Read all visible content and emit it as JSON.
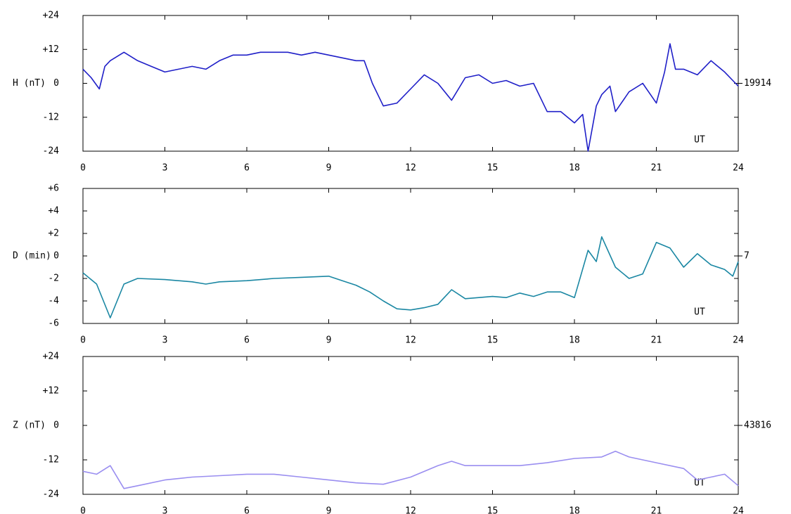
{
  "chart_data": [
    {
      "type": "line",
      "ylabel": "H (nT)",
      "right_label": "19914",
      "annotation": "UT",
      "color": "#1f1fc8",
      "xlim": [
        0,
        24
      ],
      "xticks": [
        0,
        3,
        6,
        9,
        12,
        15,
        18,
        21,
        24
      ],
      "ylim": [
        -24,
        24
      ],
      "yticks": [
        {
          "value": 24,
          "label": "+24"
        },
        {
          "value": 12,
          "label": "+12"
        },
        0,
        -12,
        -24
      ],
      "x": [
        0,
        0.3,
        0.6,
        0.8,
        1,
        1.5,
        2,
        2.5,
        3,
        3.5,
        4,
        4.5,
        5,
        5.5,
        6,
        6.5,
        7,
        7.5,
        8,
        8.5,
        9,
        9.5,
        10,
        10.3,
        10.6,
        11,
        11.5,
        12,
        12.5,
        13,
        13.5,
        14,
        14.5,
        15,
        15.5,
        16,
        16.5,
        17,
        17.5,
        18,
        18.3,
        18.5,
        18.8,
        19,
        19.3,
        19.5,
        20,
        20.5,
        21,
        21.3,
        21.5,
        21.7,
        22,
        22.5,
        23,
        23.5,
        24
      ],
      "values": [
        5,
        2,
        -2,
        6,
        8,
        11,
        8,
        6,
        4,
        5,
        6,
        5,
        8,
        10,
        10,
        11,
        11,
        11,
        10,
        11,
        10,
        9,
        8,
        8,
        0,
        -8,
        -7,
        -2,
        3,
        0,
        -6,
        2,
        3,
        0,
        1,
        -1,
        0,
        -10,
        -10,
        -14,
        -11,
        -24,
        -8,
        -4,
        -1,
        -10,
        -3,
        0,
        -7,
        4,
        14,
        5,
        5,
        3,
        8,
        4,
        -1
      ]
    },
    {
      "type": "line",
      "ylabel": "D (min)",
      "right_label": "7",
      "annotation": "UT",
      "color": "#1a87a3",
      "xlim": [
        0,
        24
      ],
      "xticks": [
        0,
        3,
        6,
        9,
        12,
        15,
        18,
        21,
        24
      ],
      "ylim": [
        -6,
        6
      ],
      "yticks": [
        {
          "value": 6,
          "label": "+6"
        },
        {
          "value": 4,
          "label": "+4"
        },
        {
          "value": 2,
          "label": "+2"
        },
        0,
        -2,
        -4,
        -6
      ],
      "x": [
        0,
        0.5,
        1,
        1.5,
        2,
        3,
        4,
        4.5,
        5,
        6,
        7,
        8,
        9,
        9.5,
        10,
        10.5,
        11,
        11.5,
        12,
        12.5,
        13,
        13.5,
        14,
        14.5,
        15,
        15.5,
        16,
        16.5,
        17,
        17.5,
        18,
        18.5,
        18.8,
        19,
        19.5,
        20,
        20.5,
        21,
        21.5,
        22,
        22.5,
        23,
        23.5,
        23.8,
        24
      ],
      "values": [
        -1.5,
        -2.5,
        -5.5,
        -2.5,
        -2,
        -2.1,
        -2.3,
        -2.5,
        -2.3,
        -2.2,
        -2,
        -1.9,
        -1.8,
        -2.2,
        -2.6,
        -3.2,
        -4,
        -4.7,
        -4.8,
        -4.6,
        -4.3,
        -3,
        -3.8,
        -3.7,
        -3.6,
        -3.7,
        -3.3,
        -3.6,
        -3.2,
        -3.2,
        -3.7,
        0.5,
        -0.5,
        1.7,
        -1,
        -2,
        -1.6,
        1.2,
        0.7,
        -1,
        0.2,
        -0.8,
        -1.2,
        -1.8,
        -0.5
      ]
    },
    {
      "type": "line",
      "ylabel": "Z (nT)",
      "right_label": "43816",
      "annotation": "UT",
      "color": "#9a8ef0",
      "xlim": [
        0,
        24
      ],
      "xticks": [
        0,
        3,
        6,
        9,
        12,
        15,
        18,
        21,
        24
      ],
      "ylim": [
        -24,
        24
      ],
      "yticks": [
        {
          "value": 24,
          "label": "+24"
        },
        {
          "value": 12,
          "label": "+12"
        },
        0,
        -12,
        -24
      ],
      "x": [
        0,
        0.5,
        1,
        1.5,
        2,
        3,
        4,
        5,
        6,
        7,
        8,
        9,
        10,
        11,
        12,
        13,
        13.5,
        14,
        15,
        16,
        17,
        18,
        19,
        19.5,
        20,
        21,
        22,
        22.5,
        23,
        23.5,
        24
      ],
      "values": [
        -16,
        -17,
        -14,
        -22,
        -21,
        -19,
        -18,
        -17.5,
        -17,
        -17,
        -18,
        -19,
        -20,
        -20.5,
        -18,
        -14,
        -12.5,
        -14,
        -14,
        -14,
        -13,
        -11.5,
        -11,
        -9,
        -11,
        -13,
        -15,
        -19,
        -18,
        -17,
        -21
      ]
    }
  ]
}
